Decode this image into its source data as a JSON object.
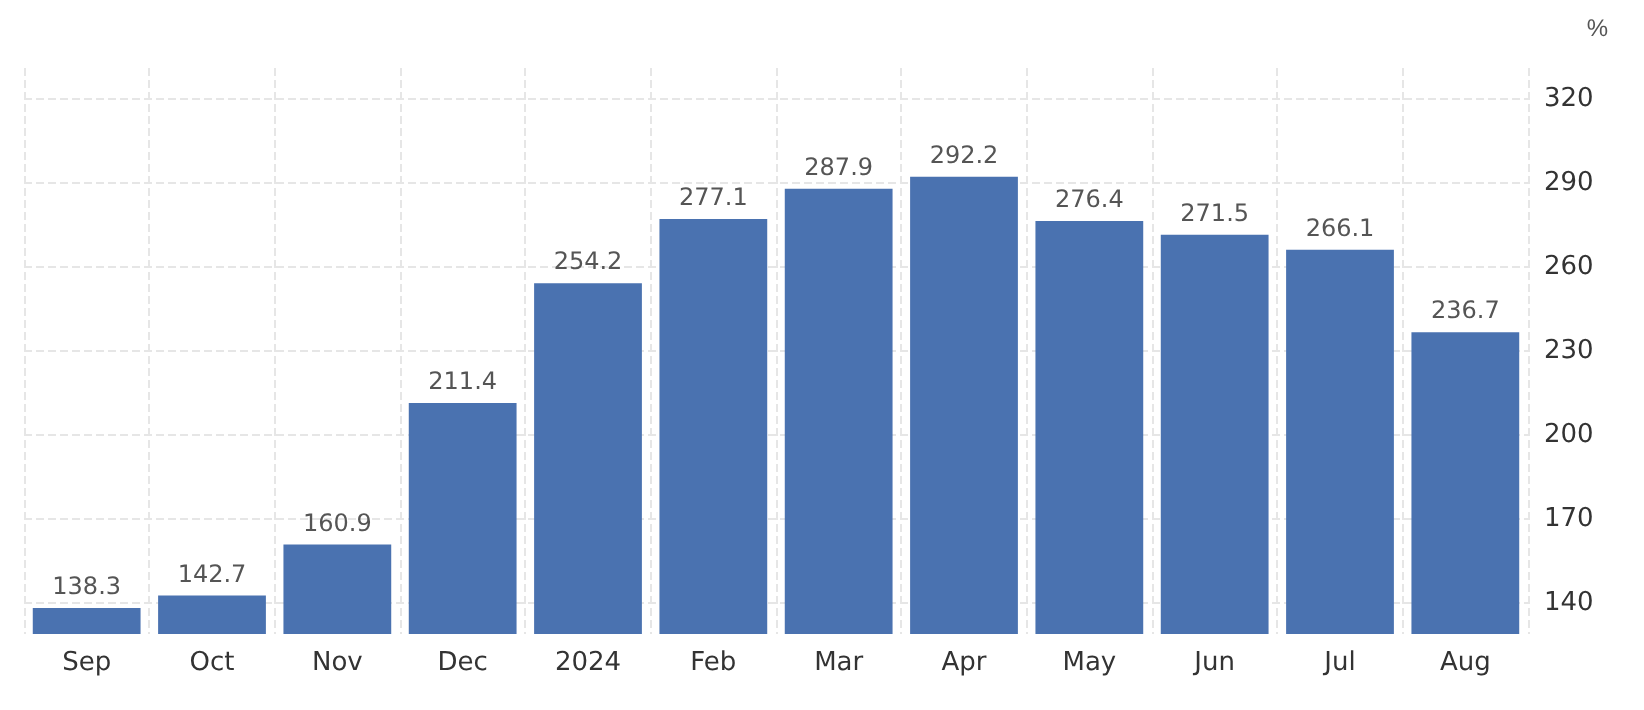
{
  "chart_data": {
    "type": "bar",
    "ylabel": "%",
    "categories": [
      "Sep",
      "Oct",
      "Nov",
      "Dec",
      "2024",
      "Feb",
      "Mar",
      "Apr",
      "May",
      "Jun",
      "Jul",
      "Aug"
    ],
    "values": [
      138.3,
      142.7,
      160.9,
      211.4,
      254.2,
      277.1,
      287.9,
      292.2,
      276.4,
      271.5,
      266.1,
      236.7
    ],
    "color": "#4a72b0",
    "ylim": [
      129,
      331
    ],
    "yticks": [
      140,
      170,
      200,
      230,
      260,
      290,
      320
    ],
    "grid": true,
    "data_labels": true
  }
}
